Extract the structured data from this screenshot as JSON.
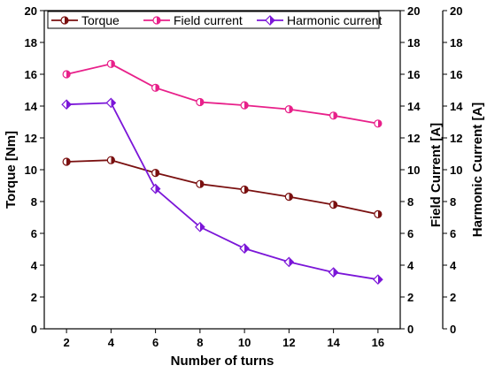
{
  "chart_data": {
    "type": "line",
    "title": "",
    "xlabel": "Number of turns",
    "x": [
      2,
      4,
      6,
      8,
      10,
      12,
      14,
      16
    ],
    "xticks": [
      "2",
      "4",
      "6",
      "8",
      "10",
      "12",
      "14",
      "16"
    ],
    "xlim": [
      1,
      17
    ],
    "ylim": [
      0,
      20
    ],
    "yticks": [
      "0",
      "2",
      "4",
      "6",
      "8",
      "10",
      "12",
      "14",
      "16",
      "18",
      "20"
    ],
    "axes": [
      {
        "label": "Torque [Nm]",
        "position": "left",
        "ylim": [
          0,
          20
        ]
      },
      {
        "label": "Field Current [A]",
        "position": "right",
        "ylim": [
          0,
          20
        ]
      },
      {
        "label": "Harmonic Current [A]",
        "position": "right-outer",
        "ylim": [
          0,
          20
        ]
      }
    ],
    "legend_position": "top",
    "grid": false,
    "series": [
      {
        "name": "Torque",
        "axis": 0,
        "color": "#7a1010",
        "marker": "half-filled-circle",
        "values": [
          10.5,
          10.6,
          9.8,
          9.1,
          8.75,
          8.3,
          7.8,
          7.2
        ]
      },
      {
        "name": "Field current",
        "axis": 1,
        "color": "#e8208a",
        "marker": "half-filled-circle",
        "values": [
          16.0,
          16.65,
          15.15,
          14.25,
          14.05,
          13.8,
          13.4,
          12.9
        ]
      },
      {
        "name": "Harmonic current",
        "axis": 2,
        "color": "#7b16d8",
        "marker": "half-filled-diamond",
        "values": [
          14.1,
          14.2,
          8.8,
          6.4,
          5.05,
          4.2,
          3.55,
          3.1
        ]
      }
    ]
  }
}
